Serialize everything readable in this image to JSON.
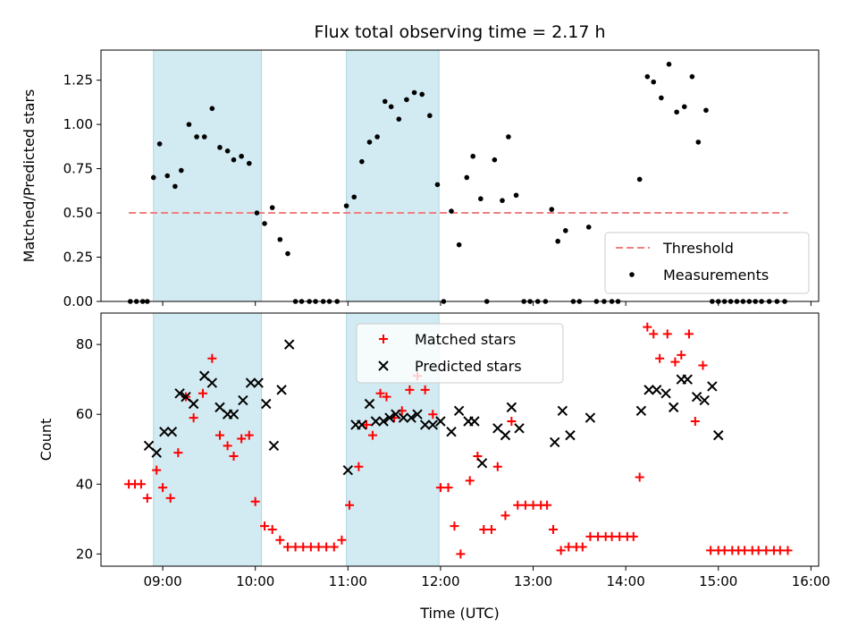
{
  "chart_data": [
    {
      "type": "scatter",
      "title": "Flux total observing time = 2.17 h",
      "xlabel": "",
      "ylabel": "Matched/Predicted stars",
      "x_axis": "time-of-day",
      "xlim": [
        "08:20",
        "16:05"
      ],
      "ylim": [
        0,
        1.42
      ],
      "yticks": [
        0.0,
        0.25,
        0.5,
        0.75,
        1.0,
        1.25
      ],
      "ytick_labels": [
        "0.00",
        "0.25",
        "0.50",
        "0.75",
        "1.00",
        "1.25"
      ],
      "shaded_intervals": [
        [
          "08:54",
          "10:04"
        ],
        [
          "10:59",
          "11:59"
        ]
      ],
      "shade_color": "#add8e6",
      "legend_position": "lower right",
      "series": [
        {
          "name": "Threshold",
          "kind": "dashed-line",
          "color": "#f08080",
          "x": [
            "08:38",
            "15:45"
          ],
          "y": [
            0.5,
            0.5
          ]
        },
        {
          "name": "Measurements",
          "kind": "dot",
          "color": "#000000",
          "points": [
            [
              "08:39",
              0
            ],
            [
              "08:43",
              0
            ],
            [
              "08:47",
              0
            ],
            [
              "08:50",
              0
            ],
            [
              "08:54",
              0.7
            ],
            [
              "08:58",
              0.89
            ],
            [
              "09:03",
              0.71
            ],
            [
              "09:08",
              0.65
            ],
            [
              "09:12",
              0.74
            ],
            [
              "09:17",
              1.0
            ],
            [
              "09:22",
              0.93
            ],
            [
              "09:27",
              0.93
            ],
            [
              "09:32",
              1.09
            ],
            [
              "09:37",
              0.87
            ],
            [
              "09:42",
              0.85
            ],
            [
              "09:46",
              0.8
            ],
            [
              "09:51",
              0.82
            ],
            [
              "09:56",
              0.78
            ],
            [
              "10:01",
              0.5
            ],
            [
              "10:06",
              0.44
            ],
            [
              "10:11",
              0.53
            ],
            [
              "10:16",
              0.35
            ],
            [
              "10:21",
              0.27
            ],
            [
              "10:26",
              0
            ],
            [
              "10:30",
              0
            ],
            [
              "10:35",
              0
            ],
            [
              "10:39",
              0
            ],
            [
              "10:44",
              0
            ],
            [
              "10:48",
              0
            ],
            [
              "10:53",
              0
            ],
            [
              "10:59",
              0.54
            ],
            [
              "11:04",
              0.59
            ],
            [
              "11:09",
              0.79
            ],
            [
              "11:14",
              0.9
            ],
            [
              "11:19",
              0.93
            ],
            [
              "11:24",
              1.13
            ],
            [
              "11:28",
              1.1
            ],
            [
              "11:33",
              1.03
            ],
            [
              "11:38",
              1.14
            ],
            [
              "11:43",
              1.18
            ],
            [
              "11:48",
              1.17
            ],
            [
              "11:53",
              1.05
            ],
            [
              "11:58",
              0.66
            ],
            [
              "12:02",
              0
            ],
            [
              "12:07",
              0.51
            ],
            [
              "12:12",
              0.32
            ],
            [
              "12:17",
              0.7
            ],
            [
              "12:21",
              0.82
            ],
            [
              "12:26",
              0.58
            ],
            [
              "12:30",
              0
            ],
            [
              "12:35",
              0.8
            ],
            [
              "12:40",
              0.57
            ],
            [
              "12:44",
              0.93
            ],
            [
              "12:49",
              0.6
            ],
            [
              "12:54",
              0
            ],
            [
              "12:58",
              0
            ],
            [
              "13:03",
              0
            ],
            [
              "13:08",
              0
            ],
            [
              "13:12",
              0.52
            ],
            [
              "13:16",
              0.34
            ],
            [
              "13:21",
              0.4
            ],
            [
              "13:26",
              0
            ],
            [
              "13:30",
              0
            ],
            [
              "13:36",
              0.42
            ],
            [
              "13:41",
              0
            ],
            [
              "13:46",
              0
            ],
            [
              "13:51",
              0
            ],
            [
              "13:55",
              0
            ],
            [
              "14:09",
              0.69
            ],
            [
              "14:14",
              1.27
            ],
            [
              "14:18",
              1.24
            ],
            [
              "14:23",
              1.15
            ],
            [
              "14:28",
              1.34
            ],
            [
              "14:33",
              1.07
            ],
            [
              "14:38",
              1.1
            ],
            [
              "14:43",
              1.27
            ],
            [
              "14:47",
              0.9
            ],
            [
              "14:52",
              1.08
            ],
            [
              "14:56",
              0
            ],
            [
              "15:00",
              0
            ],
            [
              "15:04",
              0
            ],
            [
              "15:08",
              0
            ],
            [
              "15:12",
              0
            ],
            [
              "15:16",
              0
            ],
            [
              "15:20",
              0
            ],
            [
              "15:24",
              0
            ],
            [
              "15:28",
              0
            ],
            [
              "15:33",
              0
            ],
            [
              "15:38",
              0
            ],
            [
              "15:43",
              0
            ]
          ]
        }
      ]
    },
    {
      "type": "scatter",
      "title": "",
      "xlabel": "Time (UTC)",
      "ylabel": "Count",
      "x_axis": "time-of-day",
      "xlim": [
        "08:20",
        "16:05"
      ],
      "ylim": [
        16.5,
        89
      ],
      "xticks": [
        "09:00",
        "10:00",
        "11:00",
        "12:00",
        "13:00",
        "14:00",
        "15:00",
        "16:00"
      ],
      "yticks": [
        20,
        40,
        60,
        80
      ],
      "ytick_labels": [
        "20",
        "40",
        "60",
        "80"
      ],
      "shaded_intervals": [
        [
          "08:54",
          "10:04"
        ],
        [
          "10:59",
          "11:59"
        ]
      ],
      "shade_color": "#add8e6",
      "legend_position": "upper center",
      "series": [
        {
          "name": "Matched stars",
          "kind": "plus",
          "color": "#ff0000",
          "points": [
            [
              "08:38",
              40
            ],
            [
              "08:42",
              40
            ],
            [
              "08:46",
              40
            ],
            [
              "08:50",
              36
            ],
            [
              "08:56",
              44
            ],
            [
              "09:00",
              39
            ],
            [
              "09:05",
              36
            ],
            [
              "09:10",
              49
            ],
            [
              "09:15",
              65
            ],
            [
              "09:20",
              59
            ],
            [
              "09:26",
              66
            ],
            [
              "09:32",
              76
            ],
            [
              "09:37",
              54
            ],
            [
              "09:42",
              51
            ],
            [
              "09:46",
              48
            ],
            [
              "09:51",
              53
            ],
            [
              "09:56",
              54
            ],
            [
              "10:00",
              35
            ],
            [
              "10:06",
              28
            ],
            [
              "10:11",
              27
            ],
            [
              "10:16",
              24
            ],
            [
              "10:21",
              22
            ],
            [
              "10:26",
              22
            ],
            [
              "10:31",
              22
            ],
            [
              "10:36",
              22
            ],
            [
              "10:41",
              22
            ],
            [
              "10:46",
              22
            ],
            [
              "10:51",
              22
            ],
            [
              "10:56",
              24
            ],
            [
              "11:01",
              34
            ],
            [
              "11:07",
              45
            ],
            [
              "11:12",
              57
            ],
            [
              "11:16",
              54
            ],
            [
              "11:21",
              66
            ],
            [
              "11:25",
              65
            ],
            [
              "11:30",
              59
            ],
            [
              "11:35",
              61
            ],
            [
              "11:40",
              67
            ],
            [
              "11:45",
              71
            ],
            [
              "11:50",
              67
            ],
            [
              "11:55",
              60
            ],
            [
              "12:00",
              39
            ],
            [
              "12:05",
              39
            ],
            [
              "12:09",
              28
            ],
            [
              "12:13",
              20
            ],
            [
              "12:19",
              41
            ],
            [
              "12:24",
              48
            ],
            [
              "12:28",
              27
            ],
            [
              "12:33",
              27
            ],
            [
              "12:37",
              45
            ],
            [
              "12:42",
              31
            ],
            [
              "12:46",
              58
            ],
            [
              "12:50",
              34
            ],
            [
              "12:55",
              34
            ],
            [
              "13:00",
              34
            ],
            [
              "13:05",
              34
            ],
            [
              "13:09",
              34
            ],
            [
              "13:13",
              27
            ],
            [
              "13:18",
              21
            ],
            [
              "13:23",
              22
            ],
            [
              "13:28",
              22
            ],
            [
              "13:32",
              22
            ],
            [
              "13:37",
              25
            ],
            [
              "13:42",
              25
            ],
            [
              "13:47",
              25
            ],
            [
              "13:51",
              25
            ],
            [
              "13:56",
              25
            ],
            [
              "14:01",
              25
            ],
            [
              "14:05",
              25
            ],
            [
              "14:09",
              42
            ],
            [
              "14:14",
              85
            ],
            [
              "14:18",
              83
            ],
            [
              "14:22",
              76
            ],
            [
              "14:27",
              83
            ],
            [
              "14:32",
              75
            ],
            [
              "14:36",
              77
            ],
            [
              "14:41",
              83
            ],
            [
              "14:45",
              58
            ],
            [
              "14:50",
              74
            ],
            [
              "14:55",
              21
            ],
            [
              "15:00",
              21
            ],
            [
              "15:04",
              21
            ],
            [
              "15:09",
              21
            ],
            [
              "15:13",
              21
            ],
            [
              "15:17",
              21
            ],
            [
              "15:22",
              21
            ],
            [
              "15:26",
              21
            ],
            [
              "15:31",
              21
            ],
            [
              "15:36",
              21
            ],
            [
              "15:40",
              21
            ],
            [
              "15:45",
              21
            ]
          ]
        },
        {
          "name": "Predicted stars",
          "kind": "x",
          "color": "#000000",
          "points": [
            [
              "08:51",
              51
            ],
            [
              "08:56",
              49
            ],
            [
              "09:01",
              55
            ],
            [
              "09:06",
              55
            ],
            [
              "09:11",
              66
            ],
            [
              "09:15",
              65
            ],
            [
              "09:20",
              63
            ],
            [
              "09:27",
              71
            ],
            [
              "09:32",
              69
            ],
            [
              "09:37",
              62
            ],
            [
              "09:42",
              60
            ],
            [
              "09:46",
              60
            ],
            [
              "09:52",
              64
            ],
            [
              "09:57",
              69
            ],
            [
              "10:02",
              69
            ],
            [
              "10:07",
              63
            ],
            [
              "10:12",
              51
            ],
            [
              "10:17",
              67
            ],
            [
              "10:22",
              80
            ],
            [
              "11:00",
              44
            ],
            [
              "11:05",
              57
            ],
            [
              "11:09",
              57
            ],
            [
              "11:14",
              63
            ],
            [
              "11:18",
              58
            ],
            [
              "11:23",
              58
            ],
            [
              "11:27",
              59
            ],
            [
              "11:31",
              60
            ],
            [
              "11:36",
              59
            ],
            [
              "11:41",
              59
            ],
            [
              "11:45",
              60
            ],
            [
              "11:50",
              57
            ],
            [
              "11:55",
              57
            ],
            [
              "12:00",
              58
            ],
            [
              "12:07",
              55
            ],
            [
              "12:12",
              61
            ],
            [
              "12:18",
              58
            ],
            [
              "12:22",
              58
            ],
            [
              "12:27",
              46
            ],
            [
              "12:37",
              56
            ],
            [
              "12:42",
              54
            ],
            [
              "12:46",
              62
            ],
            [
              "12:51",
              56
            ],
            [
              "13:14",
              52
            ],
            [
              "13:19",
              61
            ],
            [
              "13:24",
              54
            ],
            [
              "13:37",
              59
            ],
            [
              "14:10",
              61
            ],
            [
              "14:15",
              67
            ],
            [
              "14:20",
              67
            ],
            [
              "14:26",
              66
            ],
            [
              "14:31",
              62
            ],
            [
              "14:36",
              70
            ],
            [
              "14:40",
              70
            ],
            [
              "14:46",
              65
            ],
            [
              "14:51",
              64
            ],
            [
              "14:56",
              68
            ],
            [
              "15:00",
              54
            ]
          ]
        }
      ]
    }
  ]
}
